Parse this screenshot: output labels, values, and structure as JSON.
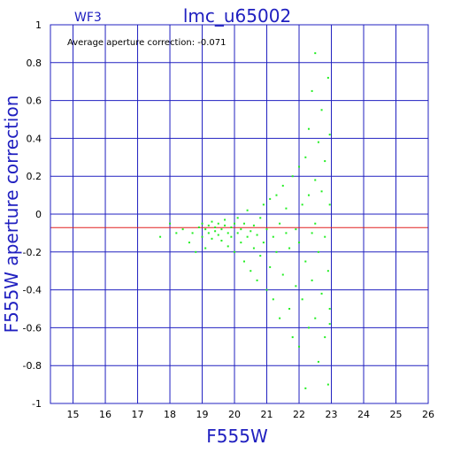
{
  "chart_data": {
    "type": "scatter",
    "title": "lmc_u65002",
    "subtitle": "WF3",
    "xlabel": "F555W",
    "ylabel": "F555W aperture correction",
    "annotation": "Average aperture correction: -0.071",
    "xlim": [
      14.3,
      26
    ],
    "ylim": [
      -1,
      1
    ],
    "x_ticks": [
      "15",
      "16",
      "17",
      "18",
      "19",
      "20",
      "21",
      "22",
      "23",
      "24",
      "25",
      "26"
    ],
    "y_ticks": [
      "1",
      "0.8",
      "0.6",
      "0.4",
      "0.2",
      "0",
      "-0.2",
      "-0.4",
      "-0.6",
      "-0.8",
      "-1"
    ],
    "grid": true,
    "reference_line": {
      "y": -0.071,
      "color": "#e02020"
    },
    "colors": {
      "frame": "#2020c0",
      "grid": "#2020c0",
      "points": "#22ee22",
      "reference": "#e02020"
    },
    "series": [
      {
        "color": "#22ee22",
        "points": [
          [
            17.7,
            -0.12
          ],
          [
            18.0,
            -0.05
          ],
          [
            18.2,
            -0.1
          ],
          [
            18.4,
            -0.08
          ],
          [
            18.6,
            -0.15
          ],
          [
            18.7,
            -0.1
          ],
          [
            18.8,
            -0.2
          ],
          [
            18.9,
            -0.07
          ],
          [
            19.0,
            -0.05
          ],
          [
            19.0,
            -0.12
          ],
          [
            19.1,
            -0.18
          ],
          [
            19.1,
            -0.08
          ],
          [
            19.2,
            -0.06
          ],
          [
            19.2,
            -0.1
          ],
          [
            19.3,
            -0.04
          ],
          [
            19.3,
            -0.13
          ],
          [
            19.4,
            -0.07
          ],
          [
            19.4,
            -0.09
          ],
          [
            19.5,
            -0.05
          ],
          [
            19.5,
            -0.11
          ],
          [
            19.6,
            -0.08
          ],
          [
            19.6,
            -0.14
          ],
          [
            19.7,
            -0.06
          ],
          [
            19.7,
            -0.03
          ],
          [
            19.8,
            -0.1
          ],
          [
            19.8,
            -0.17
          ],
          [
            19.9,
            -0.07
          ],
          [
            19.9,
            -0.12
          ],
          [
            20.0,
            -0.05
          ],
          [
            20.0,
            -0.2
          ],
          [
            20.1,
            -0.1
          ],
          [
            20.1,
            -0.02
          ],
          [
            20.2,
            -0.15
          ],
          [
            20.2,
            -0.08
          ],
          [
            20.3,
            -0.25
          ],
          [
            20.3,
            -0.05
          ],
          [
            20.4,
            -0.12
          ],
          [
            20.4,
            0.02
          ],
          [
            20.5,
            -0.3
          ],
          [
            20.5,
            -0.09
          ],
          [
            20.6,
            -0.18
          ],
          [
            20.6,
            -0.06
          ],
          [
            20.7,
            -0.35
          ],
          [
            20.7,
            -0.11
          ],
          [
            20.8,
            -0.02
          ],
          [
            20.8,
            -0.22
          ],
          [
            20.9,
            -0.15
          ],
          [
            20.9,
            0.05
          ],
          [
            21.0,
            -0.4
          ],
          [
            21.0,
            -0.08
          ],
          [
            21.1,
            -0.28
          ],
          [
            21.1,
            0.08
          ],
          [
            21.2,
            -0.12
          ],
          [
            21.2,
            -0.45
          ],
          [
            21.3,
            0.1
          ],
          [
            21.3,
            -0.2
          ],
          [
            21.4,
            -0.05
          ],
          [
            21.4,
            -0.55
          ],
          [
            21.5,
            0.15
          ],
          [
            21.5,
            -0.32
          ],
          [
            21.6,
            -0.1
          ],
          [
            21.6,
            0.03
          ],
          [
            21.7,
            -0.5
          ],
          [
            21.7,
            -0.18
          ],
          [
            21.8,
            0.2
          ],
          [
            21.8,
            -0.65
          ],
          [
            21.9,
            -0.08
          ],
          [
            21.9,
            -0.38
          ],
          [
            22.0,
            0.25
          ],
          [
            22.0,
            -0.7
          ],
          [
            22.0,
            -0.15
          ],
          [
            22.1,
            0.05
          ],
          [
            22.1,
            -0.45
          ],
          [
            22.2,
            0.3
          ],
          [
            22.2,
            -0.25
          ],
          [
            22.2,
            -0.92
          ],
          [
            22.3,
            0.1
          ],
          [
            22.3,
            -0.6
          ],
          [
            22.3,
            0.45
          ],
          [
            22.4,
            -0.1
          ],
          [
            22.4,
            -0.35
          ],
          [
            22.4,
            0.65
          ],
          [
            22.5,
            0.85
          ],
          [
            22.5,
            -0.55
          ],
          [
            22.5,
            0.18
          ],
          [
            22.5,
            -0.05
          ],
          [
            22.6,
            0.38
          ],
          [
            22.6,
            -0.2
          ],
          [
            22.6,
            -0.78
          ],
          [
            22.7,
            0.12
          ],
          [
            22.7,
            -0.42
          ],
          [
            22.7,
            0.55
          ],
          [
            22.8,
            -0.65
          ],
          [
            22.8,
            0.28
          ],
          [
            22.8,
            -0.12
          ],
          [
            22.9,
            0.72
          ],
          [
            22.9,
            -0.3
          ],
          [
            22.9,
            -0.9
          ],
          [
            22.95,
            0.05
          ],
          [
            22.95,
            -0.5
          ],
          [
            22.95,
            0.42
          ],
          [
            22.95,
            -0.58
          ]
        ]
      }
    ]
  }
}
